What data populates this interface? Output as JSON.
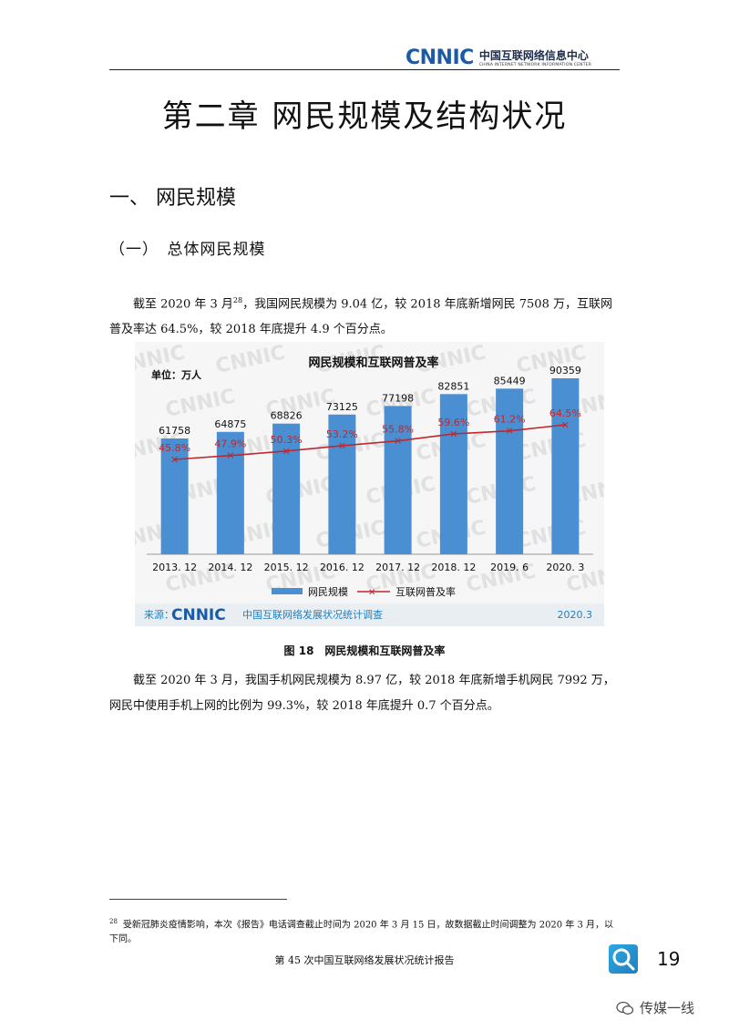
{
  "header": {
    "logo_mark": "CNNIC",
    "logo_cn": "中国互联网络信息中心",
    "logo_en": "CHINA INTERNET NETWORK INFORMATION CENTER"
  },
  "chapter_title": "第二章 网民规模及结构状况",
  "section_title": "一、 网民规模",
  "subsection_title": "（一）　总体网民规模",
  "para1": {
    "before": "截至 2020 年 3 月",
    "sup": "28",
    "after": "，我国网民规模为 9.04 亿，较 2018 年底新增网民 7508 万，互联网普及率达 64.5%，较 2018 年底提升 4.9 个百分点。"
  },
  "figure_caption": "图 18　网民规模和互联网普及率",
  "para2": "截至 2020 年 3 月，我国手机网民规模为 8.97 亿，较 2018 年底新增手机网民 7992 万，网民中使用手机上网的比例为 99.3%，较 2018 年底提升 0.7 个百分点。",
  "footnote": {
    "mark": "28",
    "text": "受新冠肺炎疫情影响，本次《报告》电话调查截止时间为 2020 年 3 月 15 日，故数据截止时间调整为 2020 年 3 月，以下同。"
  },
  "footer": {
    "report_title": "第 45 次中国互联网络发展状况统计报告",
    "page_number": "19",
    "watermark": "传媒一线"
  },
  "chart_data": {
    "type": "bar",
    "title": "网民规模和互联网普及率",
    "unit_label": "单位：万人",
    "categories": [
      "2013. 12",
      "2014. 12",
      "2015. 12",
      "2016. 12",
      "2017. 12",
      "2018. 12",
      "2019. 6",
      "2020. 3"
    ],
    "series": [
      {
        "name": "网民规模",
        "kind": "bar",
        "color": "#4a8fd1",
        "values": [
          61758,
          64875,
          68826,
          73125,
          77198,
          82851,
          85449,
          90359
        ]
      },
      {
        "name": "互联网普及率",
        "kind": "line",
        "color": "#c0272d",
        "values": [
          45.8,
          47.9,
          50.3,
          53.2,
          55.8,
          59.6,
          61.2,
          64.5
        ],
        "labels": [
          "45.8%",
          "47.9%",
          "50.3%",
          "53.2%",
          "55.8%",
          "59.6%",
          "61.2%",
          "64.5%"
        ]
      }
    ],
    "source_label": "来源：",
    "source_logo": "CNNIC",
    "source_text": "中国互联网络发展状况统计调查",
    "date_label": "2020.3",
    "watermark_text": "CNNIC",
    "legend_position": "bottom"
  }
}
